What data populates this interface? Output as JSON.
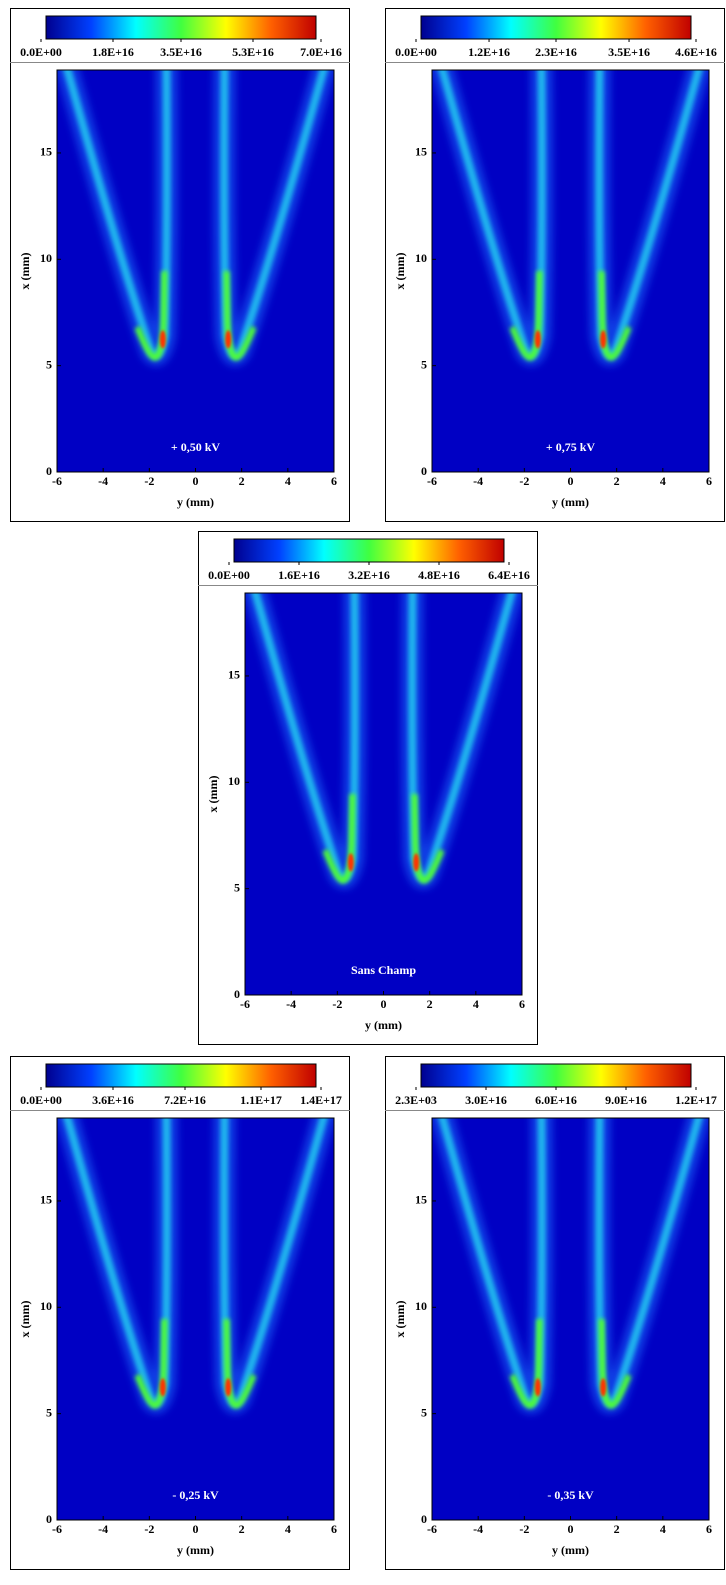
{
  "chart_data": [
    {
      "type": "heatmap",
      "annotation": "+ 0,50 kV",
      "xlabel": "y (mm)",
      "ylabel": "x (mm)",
      "xlim": [
        -6,
        6
      ],
      "xticks": [
        -6,
        -4,
        -2,
        0,
        2,
        4,
        6
      ],
      "ylim": [
        0,
        18.9
      ],
      "yticks": [
        0,
        5,
        10,
        15
      ],
      "colormap": [
        "#00008f",
        "#0040ff",
        "#00ffff",
        "#40ff40",
        "#ffff00",
        "#ff6000",
        "#c00000"
      ],
      "clim": [
        0,
        7e+16
      ],
      "cticks": [
        {
          "value": 0,
          "label": "0.0E+00"
        },
        {
          "value": 1.8e+16,
          "label": "1.8E+16"
        },
        {
          "value": 3.5e+16,
          "label": "3.5E+16"
        },
        {
          "value": 5.3e+16,
          "label": "5.3E+16"
        },
        {
          "value": 7e+16,
          "label": "7.0E+16"
        }
      ]
    },
    {
      "type": "heatmap",
      "annotation": "+ 0,75 kV",
      "xlabel": "y (mm)",
      "ylabel": "x (mm)",
      "xlim": [
        -6,
        6
      ],
      "xticks": [
        -6,
        -4,
        -2,
        0,
        2,
        4,
        6
      ],
      "ylim": [
        0,
        18.9
      ],
      "yticks": [
        0,
        5,
        10,
        15
      ],
      "colormap": [
        "#00008f",
        "#0040ff",
        "#00ffff",
        "#40ff40",
        "#ffff00",
        "#ff6000",
        "#c00000"
      ],
      "clim": [
        0,
        4.6e+16
      ],
      "cticks": [
        {
          "value": 0,
          "label": "0.0E+00"
        },
        {
          "value": 1.2e+16,
          "label": "1.2E+16"
        },
        {
          "value": 2.3e+16,
          "label": "2.3E+16"
        },
        {
          "value": 3.5e+16,
          "label": "3.5E+16"
        },
        {
          "value": 4.6e+16,
          "label": "4.6E+16"
        }
      ]
    },
    {
      "type": "heatmap",
      "annotation": "Sans Champ",
      "xlabel": "y (mm)",
      "ylabel": "x (mm)",
      "xlim": [
        -6,
        6
      ],
      "xticks": [
        -6,
        -4,
        -2,
        0,
        2,
        4,
        6
      ],
      "ylim": [
        0,
        18.9
      ],
      "yticks": [
        0,
        5,
        10,
        15
      ],
      "colormap": [
        "#00008f",
        "#0040ff",
        "#00ffff",
        "#40ff40",
        "#ffff00",
        "#ff6000",
        "#c00000"
      ],
      "clim": [
        0,
        6.4e+16
      ],
      "cticks": [
        {
          "value": 0,
          "label": "0.0E+00"
        },
        {
          "value": 1.6e+16,
          "label": "1.6E+16"
        },
        {
          "value": 3.2e+16,
          "label": "3.2E+16"
        },
        {
          "value": 4.8e+16,
          "label": "4.8E+16"
        },
        {
          "value": 6.4e+16,
          "label": "6.4E+16"
        }
      ]
    },
    {
      "type": "heatmap",
      "annotation": "- 0,25 kV",
      "xlabel": "y (mm)",
      "ylabel": "x (mm)",
      "xlim": [
        -6,
        6
      ],
      "xticks": [
        -6,
        -4,
        -2,
        0,
        2,
        4,
        6
      ],
      "ylim": [
        0,
        18.9
      ],
      "yticks": [
        0,
        5,
        10,
        15
      ],
      "colormap": [
        "#00008f",
        "#0040ff",
        "#00ffff",
        "#40ff40",
        "#ffff00",
        "#ff6000",
        "#c00000"
      ],
      "clim": [
        0,
        1.4e+17
      ],
      "cticks": [
        {
          "value": 0,
          "label": "0.0E+00"
        },
        {
          "value": 3.6e+16,
          "label": "3.6E+16"
        },
        {
          "value": 7.2e+16,
          "label": "7.2E+16"
        },
        {
          "value": 1.1e+17,
          "label": "1.1E+17"
        },
        {
          "value": 1.4e+17,
          "label": "1.4E+17"
        }
      ]
    },
    {
      "type": "heatmap",
      "annotation": "- 0,35 kV",
      "xlabel": "y (mm)",
      "ylabel": "x (mm)",
      "xlim": [
        -6,
        6
      ],
      "xticks": [
        -6,
        -4,
        -2,
        0,
        2,
        4,
        6
      ],
      "ylim": [
        0,
        18.9
      ],
      "yticks": [
        0,
        5,
        10,
        15
      ],
      "colormap": [
        "#00008f",
        "#0040ff",
        "#00ffff",
        "#40ff40",
        "#ffff00",
        "#ff6000",
        "#c00000"
      ],
      "clim": [
        2300,
        1.2e+17
      ],
      "cticks": [
        {
          "value": 2300,
          "label": "2.3E+03"
        },
        {
          "value": 3e+16,
          "label": "3.0E+16"
        },
        {
          "value": 6e+16,
          "label": "6.0E+16"
        },
        {
          "value": 9e+16,
          "label": "9.0E+16"
        },
        {
          "value": 1.2e+17,
          "label": "1.2E+17"
        }
      ]
    }
  ]
}
